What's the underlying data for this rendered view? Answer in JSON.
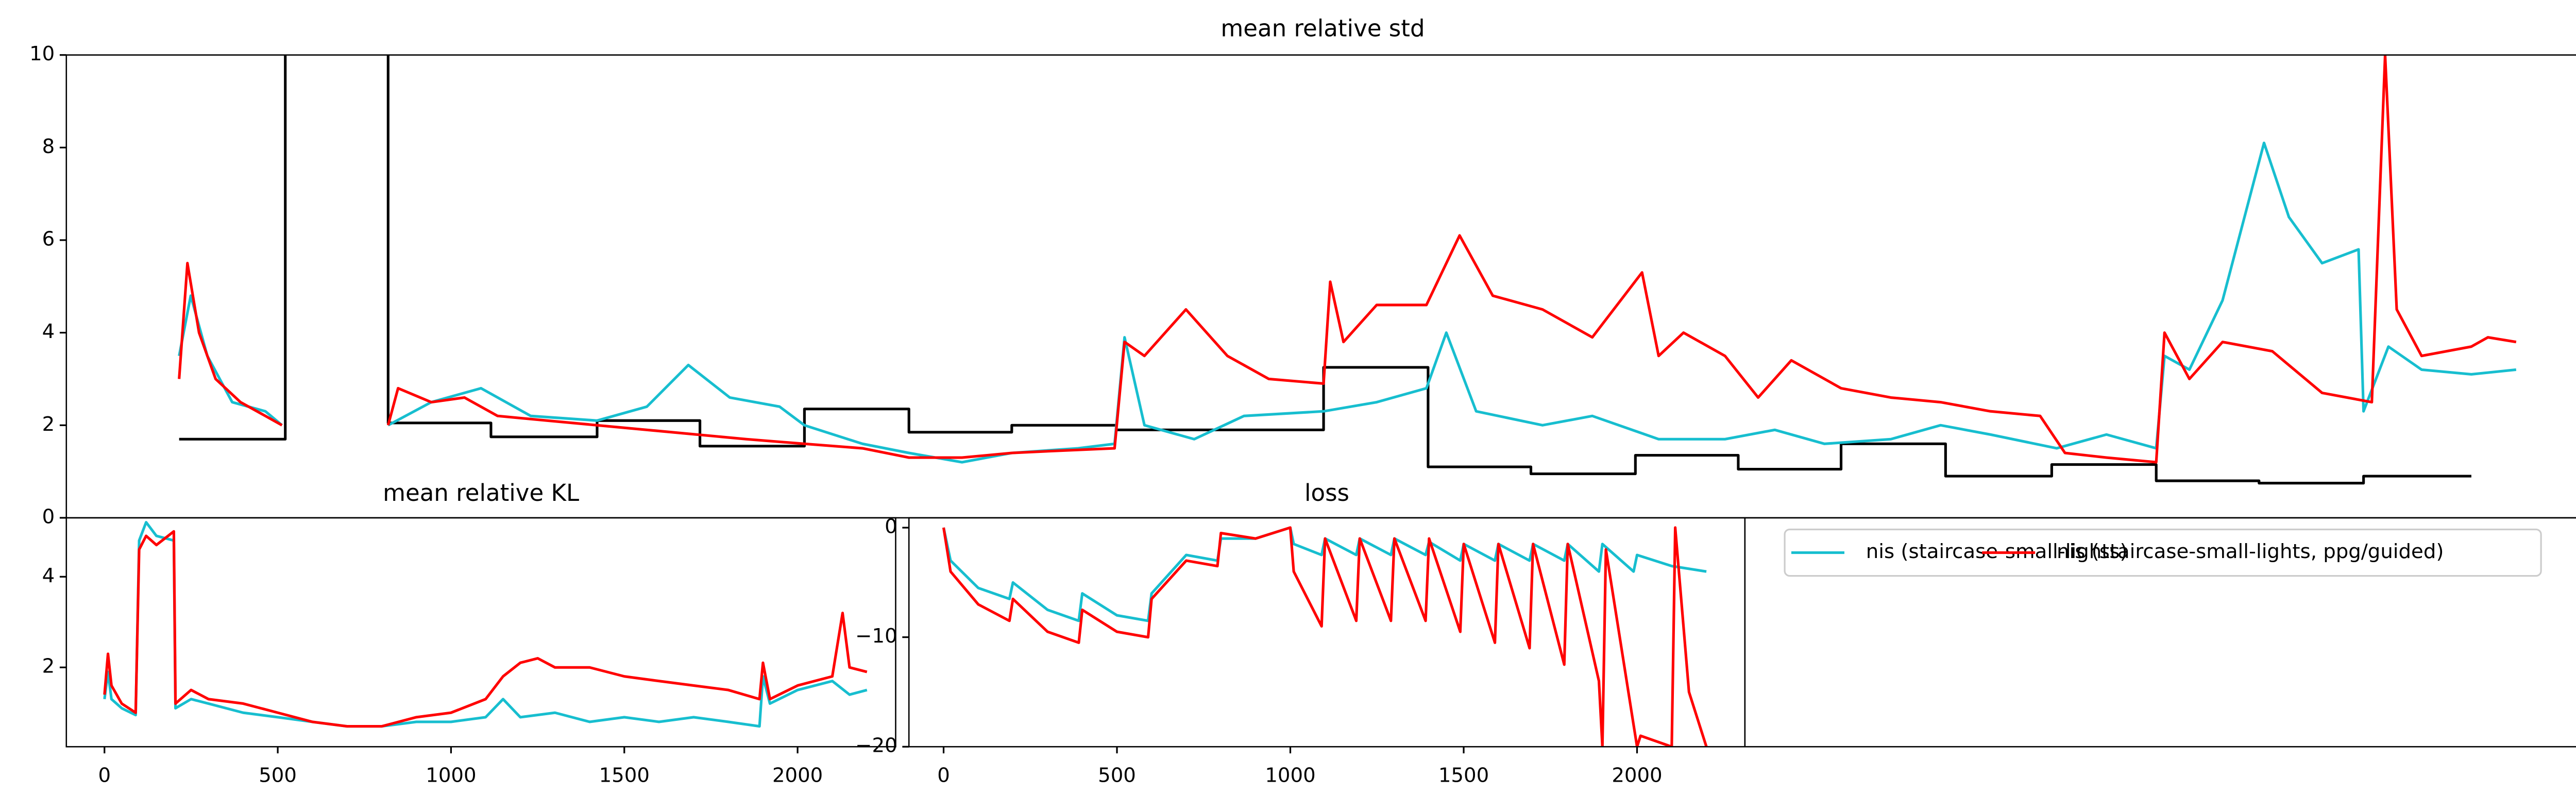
{
  "chart_data": [
    {
      "type": "line",
      "title": "mean relative std",
      "xlim": [
        0,
        1515
      ],
      "ylim": [
        0,
        10
      ],
      "yticks": [
        0,
        2,
        4,
        6,
        8,
        10
      ],
      "series": [
        {
          "color": "#000000",
          "x": [
            68,
            132,
            132,
            null,
            194,
            194,
            256,
            256,
            320,
            320,
            382,
            382,
            445,
            445,
            508,
            508,
            570,
            570,
            633,
            633,
            758,
            758,
            821,
            821,
            883,
            883,
            946,
            946,
            1008,
            1008,
            1070,
            1070,
            1133,
            1133,
            1197,
            1197,
            1260,
            1260,
            1322,
            1322,
            1385,
            1385,
            1450
          ],
          "values": [
            1.7,
            1.7,
            10,
            null,
            10,
            2.05,
            2.05,
            1.75,
            1.75,
            2.1,
            2.1,
            1.55,
            1.55,
            2.35,
            2.35,
            1.85,
            1.85,
            2.0,
            2.0,
            1.9,
            1.9,
            3.25,
            3.25,
            1.1,
            1.1,
            0.95,
            0.95,
            1.35,
            1.35,
            1.05,
            1.05,
            1.6,
            1.6,
            0.9,
            0.9,
            1.15,
            1.15,
            0.8,
            0.8,
            0.75,
            0.75,
            0.9,
            0.9
          ]
        },
        {
          "name": "nis (staircase-small-lights)",
          "color": "#17becf",
          "x": [
            68,
            75,
            85,
            100,
            120,
            130,
            null,
            194,
            220,
            250,
            280,
            320,
            350,
            375,
            400,
            430,
            445,
            480,
            508,
            540,
            570,
            610,
            632,
            638,
            650,
            680,
            710,
            758,
            790,
            820,
            832,
            850,
            890,
            920,
            960,
            1000,
            1030,
            1060,
            1100,
            1130,
            1160,
            1200,
            1230,
            1260,
            1265,
            1280,
            1300,
            1325,
            1340,
            1360,
            1382,
            1385,
            1400,
            1420,
            1450,
            1477
          ],
          "values": [
            3.5,
            4.8,
            3.5,
            2.5,
            2.3,
            2.0,
            null,
            2.0,
            2.5,
            2.8,
            2.2,
            2.1,
            2.4,
            3.3,
            2.6,
            2.4,
            2.0,
            1.6,
            1.4,
            1.2,
            1.4,
            1.5,
            1.6,
            3.9,
            2.0,
            1.7,
            2.2,
            2.3,
            2.5,
            2.8,
            4.0,
            2.3,
            2.0,
            2.2,
            1.7,
            1.7,
            1.9,
            1.6,
            1.7,
            2.0,
            1.8,
            1.5,
            1.8,
            1.5,
            3.5,
            3.2,
            4.7,
            8.1,
            6.5,
            5.5,
            5.8,
            2.3,
            3.7,
            3.2,
            3.1,
            3.2
          ]
        },
        {
          "name": "nis (staircase-small-lights, ppg/guided)",
          "color": "#ff0000",
          "x": [
            68,
            73,
            80,
            90,
            105,
            120,
            130,
            null,
            194,
            200,
            220,
            240,
            260,
            290,
            320,
            350,
            380,
            410,
            445,
            480,
            508,
            540,
            570,
            600,
            632,
            638,
            650,
            675,
            700,
            725,
            758,
            762,
            770,
            790,
            820,
            840,
            860,
            890,
            920,
            950,
            960,
            975,
            1000,
            1020,
            1040,
            1070,
            1100,
            1130,
            1160,
            1190,
            1205,
            1230,
            1260,
            1265,
            1280,
            1300,
            1330,
            1360,
            1390,
            1398,
            1405,
            1420,
            1450,
            1460,
            1477
          ],
          "values": [
            3.0,
            5.5,
            4.0,
            3.0,
            2.5,
            2.2,
            2.0,
            null,
            2.0,
            2.8,
            2.5,
            2.6,
            2.2,
            2.1,
            2.0,
            1.9,
            1.8,
            1.7,
            1.6,
            1.5,
            1.3,
            1.3,
            1.4,
            1.45,
            1.5,
            3.8,
            3.5,
            4.5,
            3.5,
            3.0,
            2.9,
            5.1,
            3.8,
            4.6,
            4.6,
            6.1,
            4.8,
            4.5,
            3.9,
            5.3,
            3.5,
            4.0,
            3.5,
            2.6,
            3.4,
            2.8,
            2.6,
            2.5,
            2.3,
            2.2,
            1.4,
            1.3,
            1.2,
            4.0,
            3.0,
            3.8,
            3.6,
            2.7,
            2.5,
            10,
            4.5,
            3.5,
            3.7,
            3.9,
            3.8
          ]
        }
      ]
    },
    {
      "type": "line",
      "title": "mean relative KL",
      "xlim": [
        -110,
        2283
      ],
      "ylim": [
        0.25,
        5.3
      ],
      "yticks": [
        2,
        4
      ],
      "xticks": [
        0,
        500,
        1000,
        1500,
        2000
      ],
      "series": [
        {
          "color": "#17becf",
          "x": [
            0,
            10,
            20,
            50,
            90,
            100,
            120,
            150,
            200,
            205,
            250,
            300,
            400,
            500,
            600,
            700,
            800,
            900,
            1000,
            1100,
            1150,
            1200,
            1300,
            1400,
            1500,
            1600,
            1700,
            1800,
            1890,
            1900,
            1920,
            2000,
            2100,
            2150,
            2200
          ],
          "values": [
            1.3,
            1.9,
            1.3,
            1.1,
            0.95,
            4.8,
            5.2,
            4.9,
            4.8,
            1.1,
            1.3,
            1.2,
            1.0,
            0.9,
            0.8,
            0.7,
            0.7,
            0.8,
            0.8,
            0.9,
            1.3,
            0.9,
            1.0,
            0.8,
            0.9,
            0.8,
            0.9,
            0.8,
            0.7,
            1.8,
            1.2,
            1.5,
            1.7,
            1.4,
            1.5
          ]
        },
        {
          "color": "#ff0000",
          "x": [
            0,
            10,
            20,
            50,
            90,
            100,
            120,
            150,
            200,
            205,
            250,
            300,
            400,
            500,
            600,
            700,
            800,
            900,
            1000,
            1100,
            1150,
            1200,
            1250,
            1300,
            1400,
            1500,
            1600,
            1700,
            1800,
            1890,
            1900,
            1920,
            2000,
            2100,
            2130,
            2150,
            2200
          ],
          "values": [
            1.4,
            2.3,
            1.6,
            1.2,
            1.0,
            4.6,
            4.9,
            4.7,
            5.0,
            1.2,
            1.5,
            1.3,
            1.2,
            1.0,
            0.8,
            0.7,
            0.7,
            0.9,
            1.0,
            1.3,
            1.8,
            2.1,
            2.2,
            2.0,
            2.0,
            1.8,
            1.7,
            1.6,
            1.5,
            1.3,
            2.1,
            1.3,
            1.6,
            1.8,
            3.2,
            2.0,
            1.9
          ]
        }
      ]
    },
    {
      "type": "line",
      "title": "loss",
      "xlim": [
        -100,
        2311
      ],
      "ylim": [
        -20,
        0.9
      ],
      "yticks": [
        0,
        {
          "value": -10,
          "label": "−10"
        },
        {
          "value": -20,
          "label": "−20"
        }
      ],
      "xticks": [
        0,
        500,
        1000,
        1500,
        2000
      ],
      "series": [
        {
          "color": "#17becf",
          "x": [
            0,
            20,
            100,
            190,
            200,
            300,
            390,
            400,
            500,
            590,
            600,
            700,
            790,
            800,
            900,
            1000,
            1010,
            1090,
            1100,
            1190,
            1200,
            1290,
            1300,
            1390,
            1400,
            1490,
            1500,
            1590,
            1600,
            1690,
            1700,
            1790,
            1800,
            1890,
            1900,
            1990,
            2000,
            2100,
            2200
          ],
          "values": [
            0,
            -3,
            -5.5,
            -6.5,
            -5,
            -7.5,
            -8.5,
            -6,
            -8,
            -8.5,
            -6,
            -2.5,
            -3,
            -1,
            -1,
            0,
            -1.5,
            -2.5,
            -1,
            -2.5,
            -1,
            -2.5,
            -1,
            -2.5,
            -1.3,
            -3,
            -1.5,
            -3,
            -1.5,
            -3,
            -1.5,
            -3,
            -1.5,
            -4,
            -1.5,
            -4,
            -2.5,
            -3.5,
            -4
          ]
        },
        {
          "color": "#ff0000",
          "x": [
            0,
            20,
            100,
            190,
            200,
            300,
            390,
            400,
            500,
            590,
            600,
            700,
            790,
            800,
            900,
            1000,
            1010,
            1090,
            1100,
            1190,
            1200,
            1290,
            1300,
            1390,
            1400,
            1490,
            1500,
            1590,
            1600,
            1690,
            1700,
            1790,
            1800,
            1890,
            1900,
            1910,
            1990,
            2000,
            2010,
            2100,
            2110,
            2150,
            2200
          ],
          "values": [
            0,
            -4,
            -7,
            -8.5,
            -6.5,
            -9.5,
            -10.5,
            -7.5,
            -9.5,
            -10,
            -6.5,
            -3,
            -3.5,
            -0.5,
            -1,
            0,
            -4,
            -9,
            -1,
            -8.5,
            -1,
            -8.5,
            -1,
            -8.5,
            -1,
            -9.5,
            -1.5,
            -10.5,
            -1.5,
            -11,
            -1.5,
            -12.5,
            -1.5,
            -14,
            -20,
            -2,
            -18,
            -20,
            -19,
            -20,
            0,
            -15,
            -20
          ]
        }
      ]
    }
  ]
}
